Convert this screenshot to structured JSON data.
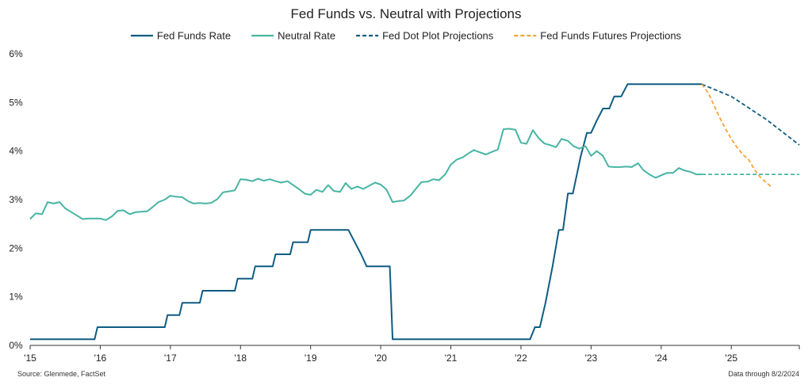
{
  "chart_data": {
    "type": "line",
    "title": "Fed Funds vs. Neutral with Projections",
    "xlabel": "",
    "ylabel": "",
    "xlim": [
      2015.0,
      2025.97
    ],
    "ylim": [
      0,
      6
    ],
    "y_ticks": [
      "0%",
      "1%",
      "2%",
      "3%",
      "4%",
      "5%",
      "6%"
    ],
    "x_ticks": [
      {
        "x": 2015,
        "label": "'15"
      },
      {
        "x": 2016,
        "label": "'16"
      },
      {
        "x": 2017,
        "label": "'17"
      },
      {
        "x": 2018,
        "label": "'18"
      },
      {
        "x": 2019,
        "label": "'19"
      },
      {
        "x": 2020,
        "label": "'20"
      },
      {
        "x": 2021,
        "label": "'21"
      },
      {
        "x": 2022,
        "label": "'22"
      },
      {
        "x": 2023,
        "label": "'23"
      },
      {
        "x": 2024,
        "label": "'24"
      },
      {
        "x": 2025,
        "label": "'25"
      }
    ],
    "grid": false,
    "legend_position": "top",
    "series": [
      {
        "name": "Fed Funds Rate",
        "color": "#0e5c82",
        "dash": "solid",
        "points": [
          [
            2015.0,
            0.125
          ],
          [
            2015.92,
            0.125
          ],
          [
            2015.96,
            0.375
          ],
          [
            2016.92,
            0.375
          ],
          [
            2016.96,
            0.625
          ],
          [
            2017.13,
            0.625
          ],
          [
            2017.17,
            0.875
          ],
          [
            2017.42,
            0.875
          ],
          [
            2017.46,
            1.125
          ],
          [
            2017.92,
            1.125
          ],
          [
            2017.96,
            1.375
          ],
          [
            2018.17,
            1.375
          ],
          [
            2018.21,
            1.625
          ],
          [
            2018.46,
            1.625
          ],
          [
            2018.5,
            1.875
          ],
          [
            2018.71,
            1.875
          ],
          [
            2018.75,
            2.125
          ],
          [
            2018.96,
            2.125
          ],
          [
            2019.0,
            2.375
          ],
          [
            2019.54,
            2.375
          ],
          [
            2019.63,
            2.125
          ],
          [
            2019.72,
            1.875
          ],
          [
            2019.8,
            1.625
          ],
          [
            2020.13,
            1.625
          ],
          [
            2020.17,
            0.125
          ],
          [
            2022.13,
            0.125
          ],
          [
            2022.2,
            0.375
          ],
          [
            2022.27,
            0.375
          ],
          [
            2022.35,
            0.875
          ],
          [
            2022.45,
            1.625
          ],
          [
            2022.54,
            2.375
          ],
          [
            2022.6,
            2.375
          ],
          [
            2022.67,
            3.125
          ],
          [
            2022.74,
            3.125
          ],
          [
            2022.85,
            3.875
          ],
          [
            2022.94,
            4.375
          ],
          [
            2023.0,
            4.375
          ],
          [
            2023.08,
            4.625
          ],
          [
            2023.17,
            4.875
          ],
          [
            2023.26,
            4.875
          ],
          [
            2023.33,
            5.125
          ],
          [
            2023.43,
            5.125
          ],
          [
            2023.52,
            5.375
          ],
          [
            2024.58,
            5.375
          ]
        ]
      },
      {
        "name": "Neutral Rate",
        "color": "#47b5a4",
        "dash": "solid",
        "points": [
          [
            2015.0,
            2.6
          ],
          [
            2015.08,
            2.72
          ],
          [
            2015.17,
            2.7
          ],
          [
            2015.25,
            2.95
          ],
          [
            2015.33,
            2.92
          ],
          [
            2015.42,
            2.95
          ],
          [
            2015.5,
            2.82
          ],
          [
            2015.58,
            2.75
          ],
          [
            2015.67,
            2.67
          ],
          [
            2015.75,
            2.6
          ],
          [
            2015.83,
            2.61
          ],
          [
            2015.92,
            2.61
          ],
          [
            2016.0,
            2.61
          ],
          [
            2016.08,
            2.58
          ],
          [
            2016.17,
            2.66
          ],
          [
            2016.25,
            2.77
          ],
          [
            2016.33,
            2.78
          ],
          [
            2016.42,
            2.7
          ],
          [
            2016.5,
            2.74
          ],
          [
            2016.58,
            2.75
          ],
          [
            2016.67,
            2.76
          ],
          [
            2016.75,
            2.85
          ],
          [
            2016.83,
            2.95
          ],
          [
            2016.92,
            3.0
          ],
          [
            2017.0,
            3.08
          ],
          [
            2017.08,
            3.06
          ],
          [
            2017.17,
            3.05
          ],
          [
            2017.25,
            2.97
          ],
          [
            2017.33,
            2.92
          ],
          [
            2017.42,
            2.93
          ],
          [
            2017.5,
            2.92
          ],
          [
            2017.58,
            2.93
          ],
          [
            2017.67,
            3.01
          ],
          [
            2017.75,
            3.15
          ],
          [
            2017.83,
            3.17
          ],
          [
            2017.92,
            3.19
          ],
          [
            2018.0,
            3.42
          ],
          [
            2018.08,
            3.41
          ],
          [
            2018.17,
            3.38
          ],
          [
            2018.25,
            3.43
          ],
          [
            2018.33,
            3.39
          ],
          [
            2018.42,
            3.42
          ],
          [
            2018.5,
            3.38
          ],
          [
            2018.58,
            3.35
          ],
          [
            2018.67,
            3.38
          ],
          [
            2018.75,
            3.3
          ],
          [
            2018.83,
            3.22
          ],
          [
            2018.92,
            3.12
          ],
          [
            2019.0,
            3.1
          ],
          [
            2019.08,
            3.2
          ],
          [
            2019.17,
            3.16
          ],
          [
            2019.25,
            3.3
          ],
          [
            2019.33,
            3.18
          ],
          [
            2019.42,
            3.16
          ],
          [
            2019.5,
            3.34
          ],
          [
            2019.58,
            3.22
          ],
          [
            2019.67,
            3.27
          ],
          [
            2019.75,
            3.22
          ],
          [
            2019.83,
            3.28
          ],
          [
            2019.92,
            3.35
          ],
          [
            2020.0,
            3.31
          ],
          [
            2020.08,
            3.21
          ],
          [
            2020.17,
            2.95
          ],
          [
            2020.25,
            2.97
          ],
          [
            2020.33,
            2.98
          ],
          [
            2020.42,
            3.08
          ],
          [
            2020.5,
            3.22
          ],
          [
            2020.58,
            3.36
          ],
          [
            2020.67,
            3.37
          ],
          [
            2020.75,
            3.42
          ],
          [
            2020.83,
            3.4
          ],
          [
            2020.92,
            3.52
          ],
          [
            2021.0,
            3.72
          ],
          [
            2021.08,
            3.82
          ],
          [
            2021.17,
            3.87
          ],
          [
            2021.25,
            3.95
          ],
          [
            2021.33,
            4.02
          ],
          [
            2021.42,
            3.97
          ],
          [
            2021.5,
            3.93
          ],
          [
            2021.58,
            3.98
          ],
          [
            2021.67,
            4.03
          ],
          [
            2021.75,
            4.45
          ],
          [
            2021.83,
            4.46
          ],
          [
            2021.92,
            4.44
          ],
          [
            2022.0,
            4.17
          ],
          [
            2022.08,
            4.15
          ],
          [
            2022.17,
            4.43
          ],
          [
            2022.25,
            4.27
          ],
          [
            2022.33,
            4.16
          ],
          [
            2022.42,
            4.12
          ],
          [
            2022.5,
            4.08
          ],
          [
            2022.58,
            4.25
          ],
          [
            2022.67,
            4.21
          ],
          [
            2022.75,
            4.1
          ],
          [
            2022.83,
            4.05
          ],
          [
            2022.92,
            4.1
          ],
          [
            2023.0,
            3.9
          ],
          [
            2023.08,
            4.0
          ],
          [
            2023.17,
            3.9
          ],
          [
            2023.25,
            3.68
          ],
          [
            2023.33,
            3.67
          ],
          [
            2023.42,
            3.67
          ],
          [
            2023.5,
            3.68
          ],
          [
            2023.58,
            3.67
          ],
          [
            2023.67,
            3.75
          ],
          [
            2023.75,
            3.6
          ],
          [
            2023.83,
            3.52
          ],
          [
            2023.92,
            3.45
          ],
          [
            2024.0,
            3.5
          ],
          [
            2024.08,
            3.55
          ],
          [
            2024.17,
            3.55
          ],
          [
            2024.25,
            3.65
          ],
          [
            2024.33,
            3.6
          ],
          [
            2024.42,
            3.57
          ],
          [
            2024.5,
            3.52
          ],
          [
            2024.58,
            3.52
          ]
        ]
      },
      {
        "name": "Fed Dot Plot Projections",
        "color": "#0e5c82",
        "dash": "dashed",
        "points": [
          [
            2024.58,
            5.375
          ],
          [
            2025.0,
            5.125
          ],
          [
            2025.5,
            4.65
          ],
          [
            2025.97,
            4.125
          ]
        ]
      },
      {
        "name": "Neutral Rate projection",
        "color": "#47b5a4",
        "dash": "dashed",
        "legend": false,
        "points": [
          [
            2024.58,
            3.52
          ],
          [
            2025.97,
            3.52
          ]
        ]
      },
      {
        "name": "Fed Funds Futures Projections",
        "color": "#f5a43a",
        "dash": "dashed",
        "points": [
          [
            2024.58,
            5.375
          ],
          [
            2024.67,
            5.2
          ],
          [
            2024.75,
            4.95
          ],
          [
            2024.83,
            4.7
          ],
          [
            2024.92,
            4.45
          ],
          [
            2025.0,
            4.25
          ],
          [
            2025.08,
            4.08
          ],
          [
            2025.17,
            3.92
          ],
          [
            2025.25,
            3.82
          ],
          [
            2025.33,
            3.62
          ],
          [
            2025.42,
            3.45
          ],
          [
            2025.5,
            3.35
          ],
          [
            2025.58,
            3.25
          ]
        ]
      }
    ]
  },
  "footer": {
    "source": "Source: Glenmede, FactSet",
    "data_through": "Data through 8/2/2024"
  }
}
